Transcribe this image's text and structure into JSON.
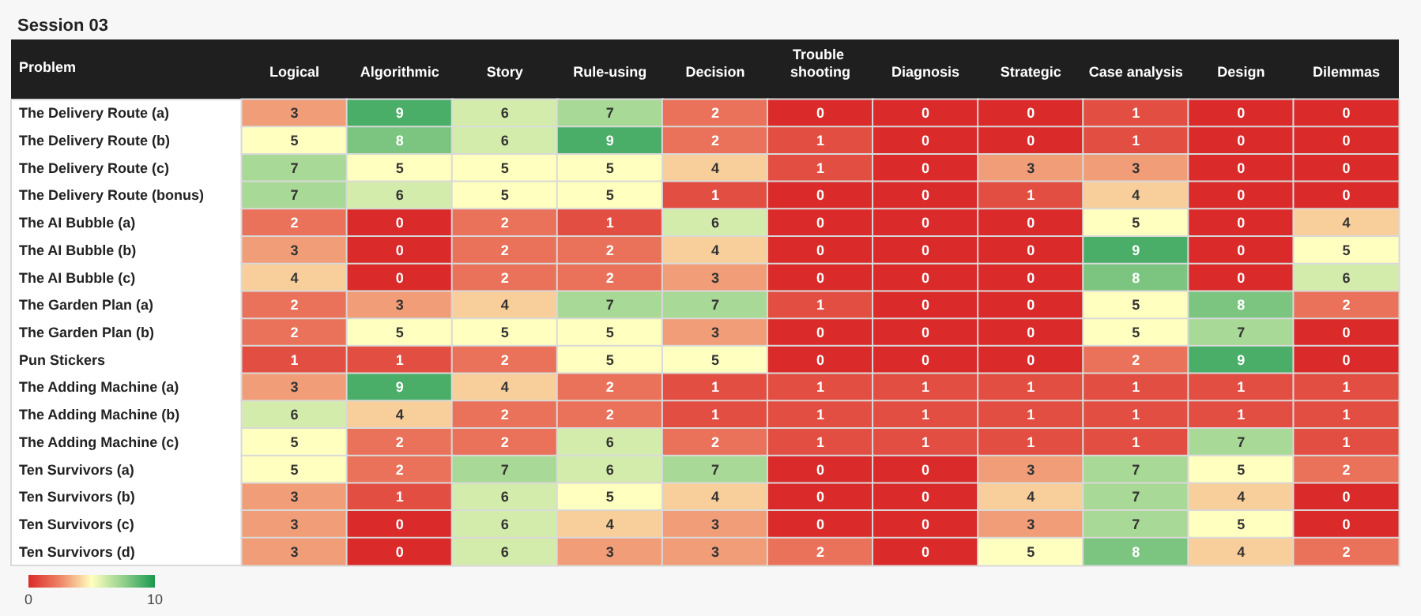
{
  "chart_data": {
    "type": "heatmap",
    "title": "Session 03",
    "ylabel": "Problem",
    "categories": [
      "Logical",
      "Algorithmic",
      "Story",
      "Rule-using",
      "Decision",
      "Trouble shooting",
      "Diagnosis",
      "Strategic",
      "Case analysis",
      "Design",
      "Dilemmas"
    ],
    "y_categories": [
      "The Delivery Route (a)",
      "The Delivery Route (b)",
      "The Delivery Route (c)",
      "The Delivery Route (bonus)",
      "The AI Bubble (a)",
      "The AI Bubble (b)",
      "The AI Bubble (c)",
      "The Garden Plan (a)",
      "The Garden Plan (b)",
      "Pun Stickers",
      "The Adding Machine (a)",
      "The Adding Machine (b)",
      "The Adding Machine (c)",
      "Ten Survivors (a)",
      "Ten Survivors (b)",
      "Ten Survivors (c)",
      "Ten Survivors (d)"
    ],
    "cells": [
      [
        3,
        9,
        6,
        7,
        2,
        0,
        0,
        0,
        1,
        0,
        0
      ],
      [
        5,
        8,
        6,
        9,
        2,
        1,
        0,
        0,
        1,
        0,
        0
      ],
      [
        7,
        5,
        5,
        5,
        4,
        1,
        0,
        3,
        3,
        0,
        0
      ],
      [
        7,
        6,
        5,
        5,
        1,
        0,
        0,
        1,
        4,
        0,
        0
      ],
      [
        2,
        0,
        2,
        1,
        6,
        0,
        0,
        0,
        5,
        0,
        4
      ],
      [
        3,
        0,
        2,
        2,
        4,
        0,
        0,
        0,
        9,
        0,
        5
      ],
      [
        4,
        0,
        2,
        2,
        3,
        0,
        0,
        0,
        8,
        0,
        6
      ],
      [
        2,
        3,
        4,
        7,
        7,
        1,
        0,
        0,
        5,
        8,
        2
      ],
      [
        2,
        5,
        5,
        5,
        3,
        0,
        0,
        0,
        5,
        7,
        0
      ],
      [
        1,
        1,
        2,
        5,
        5,
        0,
        0,
        0,
        2,
        9,
        0
      ],
      [
        3,
        9,
        4,
        2,
        1,
        1,
        1,
        1,
        1,
        1,
        1
      ],
      [
        6,
        4,
        2,
        2,
        1,
        1,
        1,
        1,
        1,
        1,
        1
      ],
      [
        5,
        2,
        2,
        6,
        2,
        1,
        1,
        1,
        1,
        7,
        1
      ],
      [
        5,
        2,
        7,
        6,
        7,
        0,
        0,
        3,
        7,
        5,
        2
      ],
      [
        3,
        1,
        6,
        5,
        4,
        0,
        0,
        4,
        7,
        4,
        0
      ],
      [
        3,
        0,
        6,
        4,
        3,
        0,
        0,
        3,
        7,
        5,
        0
      ],
      [
        3,
        0,
        6,
        3,
        3,
        2,
        0,
        5,
        8,
        4,
        2
      ]
    ],
    "data_labels": true,
    "clim": [
      0,
      10
    ],
    "cticks": [
      0,
      10
    ]
  }
}
